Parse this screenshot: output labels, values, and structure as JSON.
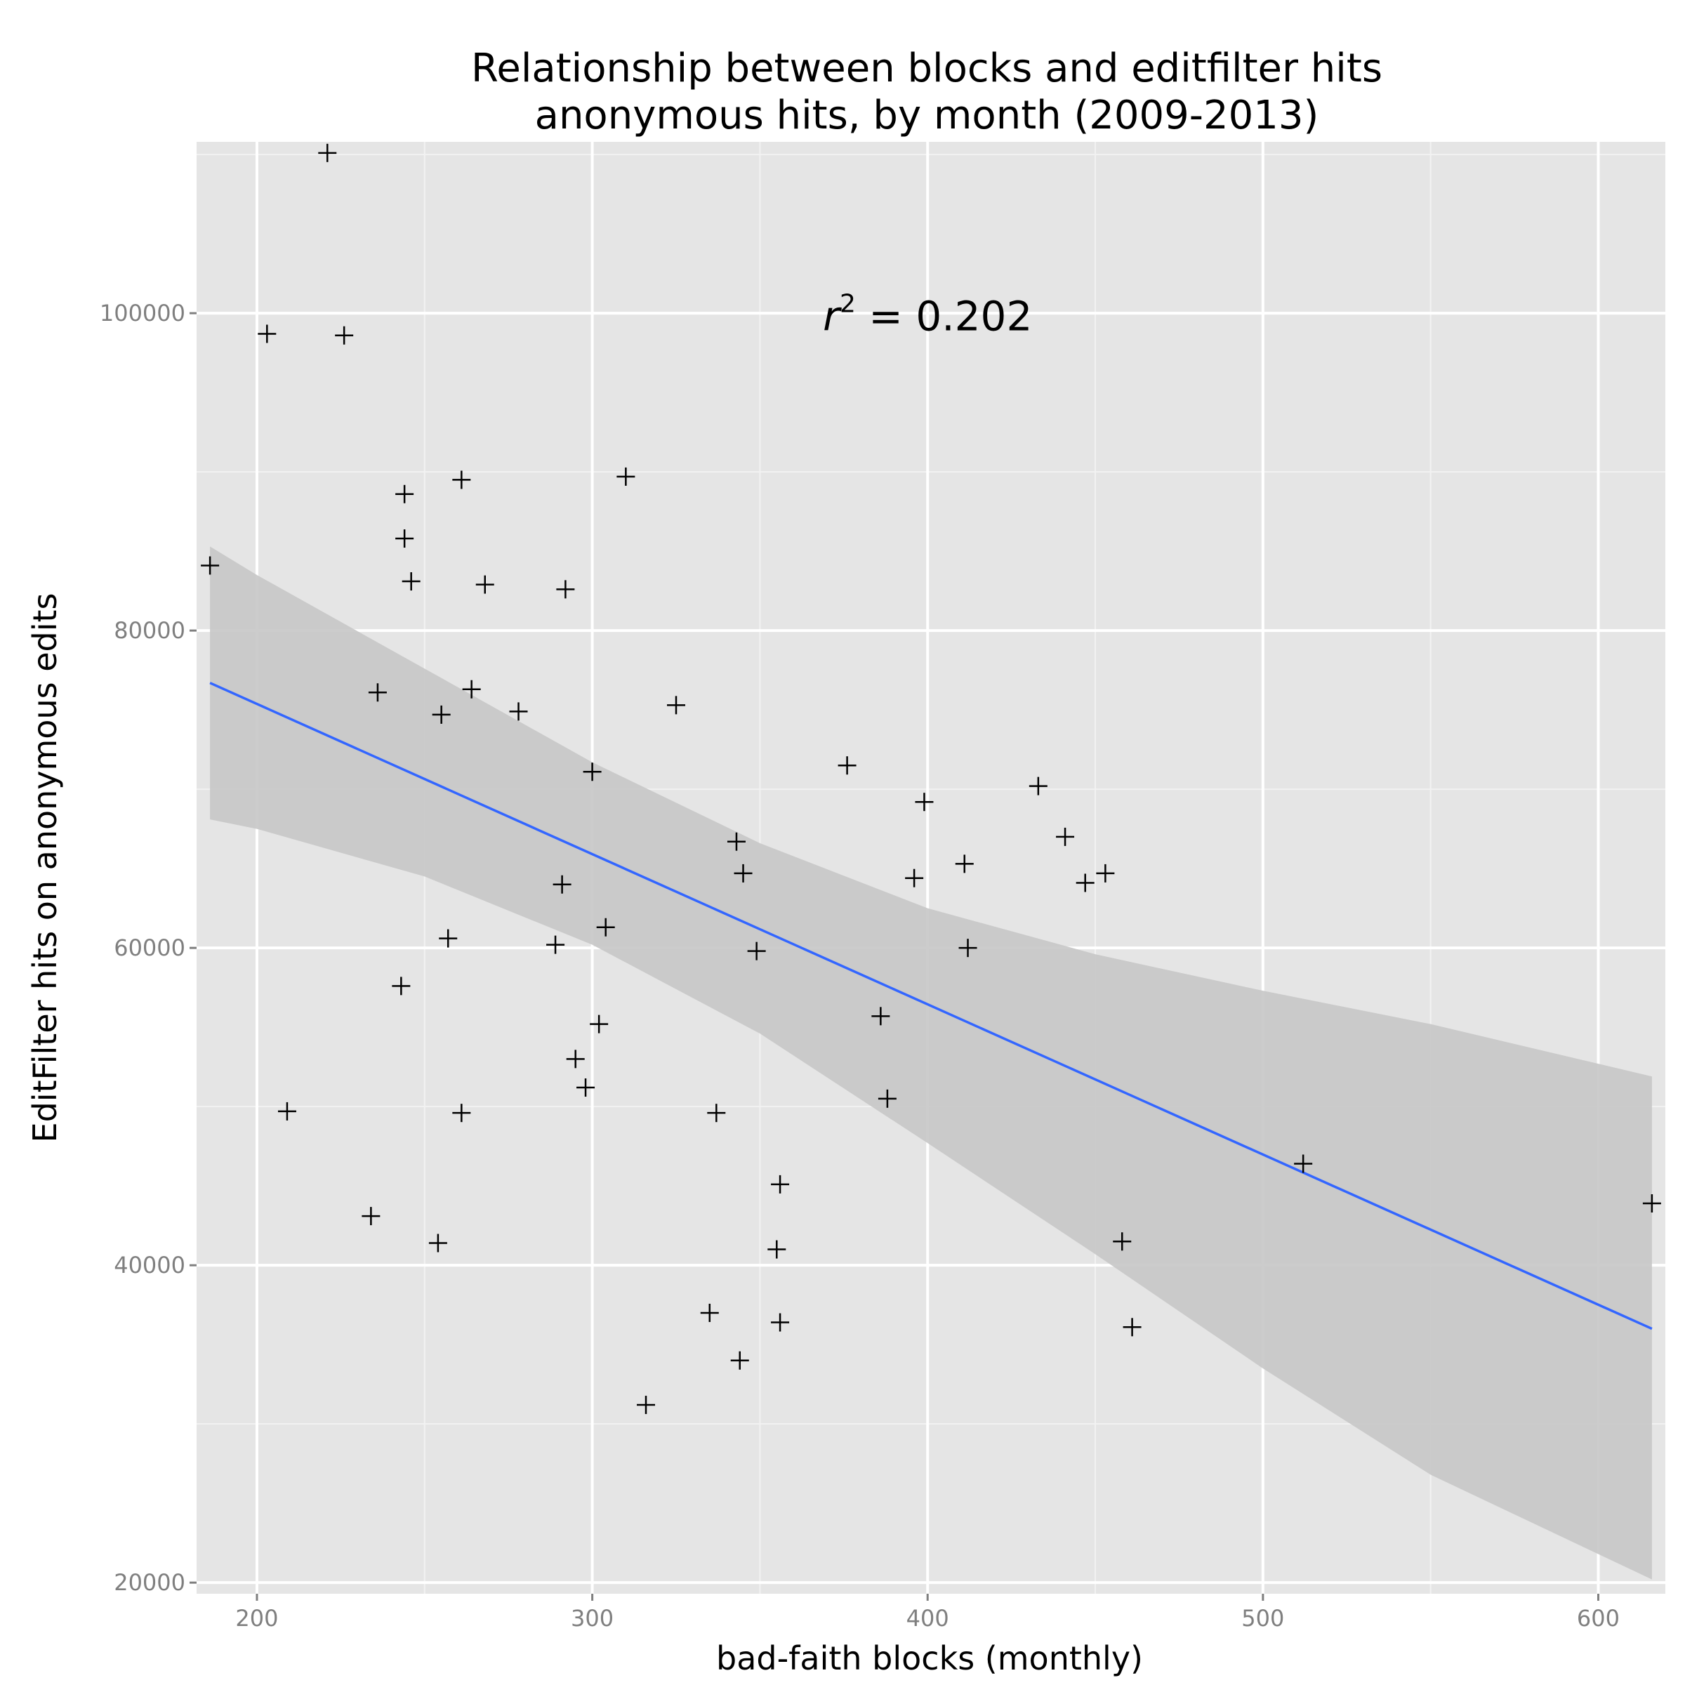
{
  "chart_data": {
    "type": "scatter",
    "title": [
      "Relationship between blocks and editfilter hits",
      "anonymous hits, by month (2009-2013)"
    ],
    "xlabel": "bad-faith blocks (monthly)",
    "ylabel": "EditFilter hits on anonymous edits",
    "xlim": [
      182,
      620
    ],
    "ylim": [
      19300,
      110800
    ],
    "xticks": [
      200,
      300,
      400,
      500,
      600
    ],
    "yticks": [
      20000,
      40000,
      60000,
      80000,
      100000
    ],
    "grid": true,
    "marker": "+",
    "annotation": {
      "symbol": "r",
      "exponent": "2",
      "text": " = 0.202",
      "x": 400,
      "y": 99800
    },
    "points": [
      [
        186,
        84100
      ],
      [
        203,
        98700
      ],
      [
        209,
        49700
      ],
      [
        221,
        110100
      ],
      [
        226,
        98600
      ],
      [
        234,
        43100
      ],
      [
        236,
        76100
      ],
      [
        243,
        57600
      ],
      [
        244,
        88600
      ],
      [
        244,
        85800
      ],
      [
        246,
        83100
      ],
      [
        254,
        41400
      ],
      [
        255,
        74700
      ],
      [
        257,
        60600
      ],
      [
        261,
        89500
      ],
      [
        261,
        49600
      ],
      [
        264,
        76300
      ],
      [
        268,
        82900
      ],
      [
        278,
        74900
      ],
      [
        289,
        60200
      ],
      [
        291,
        64000
      ],
      [
        292,
        82600
      ],
      [
        295,
        53000
      ],
      [
        298,
        51200
      ],
      [
        300,
        71100
      ],
      [
        302,
        55200
      ],
      [
        304,
        61300
      ],
      [
        310,
        89700
      ],
      [
        316,
        31200
      ],
      [
        325,
        75300
      ],
      [
        335,
        37000
      ],
      [
        337,
        49600
      ],
      [
        343,
        66700
      ],
      [
        344,
        34000
      ],
      [
        345,
        64700
      ],
      [
        349,
        59800
      ],
      [
        355,
        41000
      ],
      [
        356,
        45100
      ],
      [
        356,
        36400
      ],
      [
        376,
        71500
      ],
      [
        386,
        55700
      ],
      [
        388,
        50500
      ],
      [
        396,
        64400
      ],
      [
        399,
        69200
      ],
      [
        411,
        65300
      ],
      [
        412,
        60000
      ],
      [
        433,
        70200
      ],
      [
        441,
        67000
      ],
      [
        447,
        64100
      ],
      [
        453,
        64700
      ],
      [
        458,
        41500
      ],
      [
        461,
        36100
      ],
      [
        512,
        46400
      ],
      [
        616,
        43900
      ]
    ],
    "fit_line": {
      "x": [
        186,
        616
      ],
      "y": [
        76700,
        36000
      ],
      "color": "#3366ff"
    },
    "confidence_band": {
      "x": [
        186,
        200,
        250,
        300,
        350,
        400,
        450,
        500,
        550,
        616
      ],
      "upper": [
        85300,
        83500,
        77600,
        71700,
        66600,
        62500,
        59600,
        57300,
        55200,
        51900
      ],
      "lower": [
        68100,
        67500,
        64500,
        60200,
        54600,
        47700,
        40700,
        33500,
        26800,
        20200
      ],
      "color": "#c6c6c6"
    }
  }
}
